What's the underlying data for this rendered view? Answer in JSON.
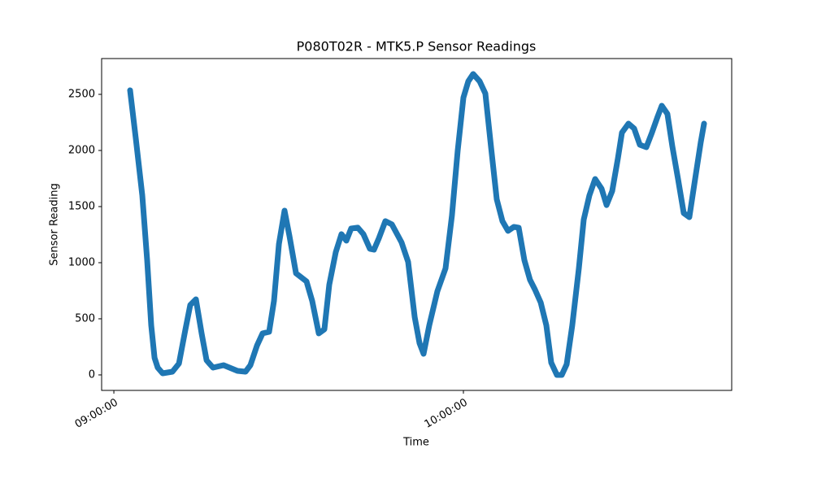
{
  "chart_data": {
    "type": "line",
    "title": "P080T02R - MTK5.P Sensor Readings",
    "x_label": "Time",
    "y_label": "Sensor Reading",
    "color": "#1f77b4",
    "x": [
      "09:02:47",
      "09:03:46",
      "09:04:53",
      "09:05:43",
      "09:06:25",
      "09:06:59",
      "09:07:32",
      "09:08:22",
      "09:10:03",
      "09:11:10",
      "09:12:17",
      "09:13:07",
      "09:14:05",
      "09:15:04",
      "09:15:55",
      "09:17:01",
      "09:18:50",
      "09:21:13",
      "09:22:36",
      "09:23:26",
      "09:24:34",
      "09:25:32",
      "09:26:39",
      "09:27:29",
      "09:28:20",
      "09:29:18",
      "09:30:08",
      "09:31:16",
      "09:33:04",
      "09:34:03",
      "09:35:10",
      "09:36:08",
      "09:36:58",
      "09:38:05",
      "09:39:04",
      "09:39:54",
      "09:40:44",
      "09:41:52",
      "09:42:50",
      "09:43:57",
      "09:44:39",
      "09:45:29",
      "09:46:36",
      "09:47:43",
      "09:49:23",
      "09:50:31",
      "09:51:38",
      "09:52:28",
      "09:53:10",
      "09:54:08",
      "09:55:32",
      "09:56:56",
      "09:58:02",
      "09:59:01",
      "10:00:00",
      "10:00:50",
      "10:01:40",
      "10:02:47",
      "10:03:46",
      "10:04:44",
      "10:05:43",
      "10:06:42",
      "10:07:40",
      "10:08:39",
      "10:09:29",
      "10:10:28",
      "10:11:26",
      "10:12:17",
      "10:13:16",
      "10:14:14",
      "10:15:04",
      "10:16:03",
      "10:16:53",
      "10:17:43",
      "10:18:41",
      "10:19:49",
      "10:20:39",
      "10:21:38",
      "10:22:36",
      "10:23:43",
      "10:24:34",
      "10:25:32",
      "10:26:31",
      "10:27:13",
      "10:28:20",
      "10:29:18",
      "10:30:17",
      "10:31:24",
      "10:32:22",
      "10:33:21",
      "10:34:03",
      "10:35:01",
      "10:35:52",
      "10:36:50",
      "10:37:49",
      "10:38:47",
      "10:39:46",
      "10:40:44",
      "10:41:18"
    ],
    "values": [
      2536,
      2109,
      1601,
      1022,
      442,
      152,
      65,
      14,
      29,
      101,
      406,
      623,
      674,
      370,
      130,
      65,
      87,
      36,
      29,
      87,
      261,
      370,
      384,
      659,
      1167,
      1464,
      1239,
      906,
      833,
      659,
      370,
      406,
      804,
      1094,
      1254,
      1196,
      1304,
      1312,
      1254,
      1123,
      1116,
      1217,
      1370,
      1341,
      1181,
      1007,
      514,
      283,
      188,
      442,
      746,
      949,
      1420,
      2000,
      2471,
      2616,
      2681,
      2616,
      2507,
      2036,
      1565,
      1370,
      1283,
      1319,
      1312,
      1022,
      848,
      761,
      645,
      442,
      109,
      0,
      0,
      94,
      442,
      949,
      1384,
      1601,
      1746,
      1659,
      1514,
      1638,
      1928,
      2159,
      2239,
      2196,
      2051,
      2029,
      2159,
      2304,
      2399,
      2326,
      2036,
      1746,
      1442,
      1406,
      1746,
      2072,
      2239
    ],
    "xlim": [
      "08:57:54",
      "10:46:03"
    ],
    "xticks": [
      "09:00:00",
      "10:00:00"
    ],
    "ylim": [
      -138,
      2819
    ],
    "yticks": [
      0,
      500,
      1000,
      1500,
      2000,
      2500
    ]
  }
}
